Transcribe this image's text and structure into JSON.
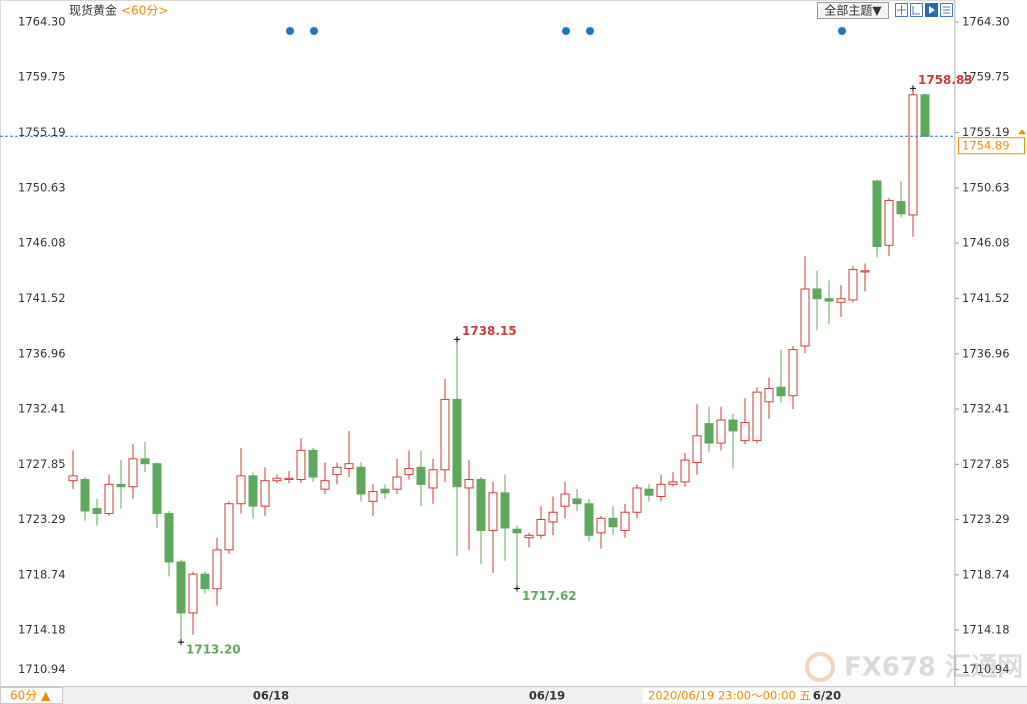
{
  "chart_data": {
    "type": "candlestick",
    "title": "现货黄金",
    "subtitle": "<60分>",
    "theme_button": "全部主题▼",
    "period_button": "60分 ▲",
    "time_label": "2020/06/19 23:00～00:00 五",
    "watermark": "FX678 汇通网",
    "categories": [
      null,
      null,
      null,
      null,
      null,
      null,
      null,
      null,
      null,
      null,
      null,
      null,
      null,
      null,
      null,
      null,
      "06/18",
      null,
      null,
      null,
      null,
      null,
      null,
      null,
      null,
      null,
      null,
      null,
      null,
      null,
      null,
      null,
      null,
      null,
      null,
      null,
      null,
      null,
      null,
      "06/19",
      null,
      null,
      null,
      null,
      null,
      null,
      null,
      null,
      null,
      null,
      null,
      null,
      null,
      null,
      null,
      null,
      null,
      null,
      null,
      null,
      null,
      null,
      "06/20",
      null,
      null,
      null,
      null,
      null,
      null,
      null,
      null,
      null
    ],
    "open": [
      1726.5,
      1726.6,
      1724.2,
      1723.8,
      1726.2,
      1726.0,
      1728.3,
      1727.9,
      1723.8,
      1719.8,
      1715.6,
      1718.8,
      1717.6,
      1720.8,
      1724.6,
      1726.9,
      1724.4,
      1726.5,
      1726.6,
      1726.6,
      1729.0,
      1725.8,
      1727.0,
      1727.5,
      1727.6,
      1724.8,
      1725.8,
      1725.8,
      1727.0,
      1727.6,
      1725.9,
      1727.4,
      1733.2,
      1725.9,
      1726.6,
      1722.4,
      1725.5,
      1722.5,
      1721.8,
      1722.0,
      1723.1,
      1724.4,
      1725.0,
      1724.6,
      1722.2,
      1723.4,
      1722.4,
      1723.9,
      1725.8,
      1725.2,
      1726.2,
      1726.4,
      1728.0,
      1731.2,
      1729.6,
      1731.5,
      1729.8,
      1729.8,
      1733.0,
      1734.2,
      1733.5,
      1737.6,
      1742.3,
      1741.5,
      1741.2,
      1741.4,
      1743.7,
      1751.2,
      1745.9,
      1749.5,
      1748.4,
      1758.3
    ],
    "high": [
      1729.0,
      1726.8,
      1725.0,
      1727.0,
      1728.2,
      1729.5,
      1729.7,
      1728.0,
      1724.0,
      1720.0,
      1719.0,
      1719.0,
      1721.8,
      1724.8,
      1729.2,
      1727.2,
      1727.6,
      1727.0,
      1727.3,
      1730.0,
      1729.2,
      1728.0,
      1728.0,
      1730.6,
      1728.0,
      1726.2,
      1726.2,
      1728.3,
      1729.0,
      1729.0,
      1728.3,
      1734.9,
      1738.15,
      1728.2,
      1726.8,
      1726.4,
      1727.0,
      1722.8,
      1722.2,
      1724.4,
      1725.2,
      1726.4,
      1725.8,
      1725.0,
      1723.6,
      1724.4,
      1724.6,
      1726.2,
      1726.2,
      1727.0,
      1727.2,
      1728.8,
      1732.8,
      1732.6,
      1732.6,
      1732.0,
      1733.3,
      1734.2,
      1735.0,
      1737.3,
      1737.6,
      1745.0,
      1743.8,
      1743.0,
      1742.6,
      1744.2,
      1744.4,
      1751.3,
      1749.8,
      1751.2,
      1758.83,
      1758.4
    ],
    "low": [
      1725.8,
      1723.2,
      1722.8,
      1723.6,
      1724.2,
      1725.0,
      1727.2,
      1722.6,
      1718.6,
      1713.2,
      1713.8,
      1717.2,
      1716.2,
      1720.5,
      1723.8,
      1723.4,
      1723.6,
      1726.3,
      1726.3,
      1726.3,
      1726.4,
      1725.4,
      1726.2,
      1726.8,
      1724.8,
      1723.6,
      1725.0,
      1725.4,
      1726.6,
      1724.4,
      1724.6,
      1726.4,
      1720.3,
      1720.8,
      1719.6,
      1718.9,
      1719.9,
      1717.62,
      1721.0,
      1721.7,
      1722.0,
      1723.4,
      1724.0,
      1721.5,
      1720.9,
      1722.0,
      1721.8,
      1723.4,
      1724.8,
      1724.8,
      1726.0,
      1726.0,
      1727.0,
      1728.9,
      1729.0,
      1727.5,
      1729.5,
      1729.6,
      1731.6,
      1732.9,
      1732.4,
      1737.0,
      1738.9,
      1739.4,
      1740.0,
      1741.2,
      1742.1,
      1744.9,
      1745.0,
      1748.2,
      1746.6,
      1754.8
    ],
    "close": [
      1726.9,
      1724.0,
      1723.8,
      1726.2,
      1726.0,
      1728.3,
      1727.9,
      1723.8,
      1719.8,
      1715.6,
      1718.8,
      1717.6,
      1720.8,
      1724.6,
      1726.9,
      1724.4,
      1726.5,
      1726.7,
      1726.7,
      1729.0,
      1726.8,
      1726.5,
      1727.6,
      1727.9,
      1725.4,
      1725.6,
      1725.5,
      1726.8,
      1727.5,
      1726.2,
      1727.4,
      1733.2,
      1726.0,
      1726.6,
      1722.4,
      1725.5,
      1722.6,
      1722.2,
      1722.0,
      1723.3,
      1723.9,
      1725.4,
      1724.6,
      1722.0,
      1723.4,
      1722.7,
      1723.9,
      1725.9,
      1725.3,
      1726.2,
      1726.4,
      1728.2,
      1730.2,
      1729.6,
      1731.5,
      1730.6,
      1731.3,
      1733.8,
      1734.1,
      1733.5,
      1737.3,
      1742.3,
      1741.5,
      1741.3,
      1741.5,
      1743.9,
      1743.8,
      1745.8,
      1749.6,
      1748.5,
      1758.3,
      1754.89
    ],
    "up_color": "#d03a35",
    "down_color": "#5ea85b",
    "annotations": [
      {
        "label": "1758.83",
        "value": 1758.83,
        "color": "#d03a35"
      },
      {
        "label": "1738.15",
        "value": 1738.15,
        "color": "#d03a35"
      },
      {
        "label": "1713.20",
        "value": 1713.2,
        "color": "#5ea85b"
      },
      {
        "label": "1717.62",
        "value": 1717.62,
        "color": "#5ea85b"
      }
    ],
    "last_price": 1754.89,
    "last_price_color": "#f08c00",
    "price_line_color": "#2a78c8",
    "ylim": [
      1709.58,
      1765.95
    ],
    "yticks": [
      {
        "value": 1764.3,
        "label": "1764.30"
      },
      1759.75,
      1755.19,
      1750.63,
      1746.08,
      1741.52,
      1736.96,
      1732.41,
      1727.85,
      1723.29,
      1718.74,
      1714.18,
      1710.94
    ]
  }
}
